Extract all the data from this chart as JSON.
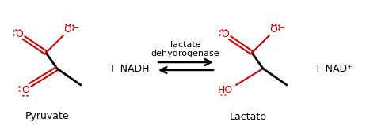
{
  "bg_color": "#ffffff",
  "line_color": "#000000",
  "red_color": "#cc0000",
  "arrow_label_top": "lactate",
  "arrow_label_bot": "dehydrogenase",
  "nadh_label": "+ NADH",
  "nad_label": "+ NAD⁺",
  "pyruvate_label": "Pyruvate",
  "lactate_label": "Lactate"
}
